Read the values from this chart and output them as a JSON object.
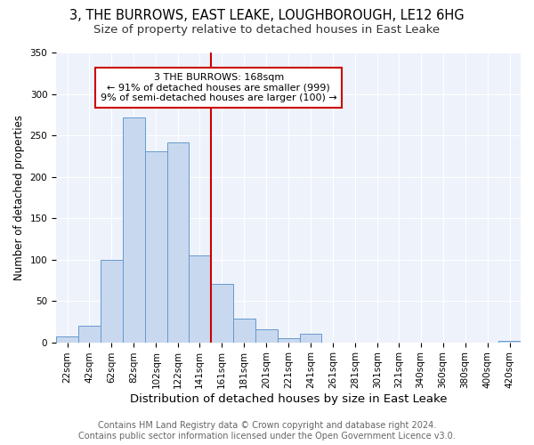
{
  "title": "3, THE BURROWS, EAST LEAKE, LOUGHBOROUGH, LE12 6HG",
  "subtitle": "Size of property relative to detached houses in East Leake",
  "xlabel": "Distribution of detached houses by size in East Leake",
  "ylabel": "Number of detached properties",
  "bin_labels": [
    "22sqm",
    "42sqm",
    "62sqm",
    "82sqm",
    "102sqm",
    "122sqm",
    "141sqm",
    "161sqm",
    "181sqm",
    "201sqm",
    "221sqm",
    "241sqm",
    "261sqm",
    "281sqm",
    "301sqm",
    "321sqm",
    "340sqm",
    "360sqm",
    "380sqm",
    "400sqm",
    "420sqm"
  ],
  "bar_heights": [
    7,
    20,
    100,
    271,
    231,
    241,
    105,
    70,
    29,
    16,
    5,
    10,
    0,
    0,
    0,
    0,
    0,
    0,
    0,
    0,
    2
  ],
  "bar_color": "#c8d9ef",
  "bar_edge_color": "#6699cc",
  "vline_x": 7,
  "vline_color": "#cc0000",
  "annotation_title": "3 THE BURROWS: 168sqm",
  "annotation_line1": "← 91% of detached houses are smaller (999)",
  "annotation_line2": "9% of semi-detached houses are larger (100) →",
  "annotation_box_color": "#ffffff",
  "annotation_box_edge": "#cc0000",
  "ylim": [
    0,
    350
  ],
  "yticks": [
    0,
    50,
    100,
    150,
    200,
    250,
    300,
    350
  ],
  "background_color": "#eef2fb",
  "footer1": "Contains HM Land Registry data © Crown copyright and database right 2024.",
  "footer2": "Contains public sector information licensed under the Open Government Licence v3.0.",
  "title_fontsize": 10.5,
  "subtitle_fontsize": 9.5,
  "xlabel_fontsize": 9.5,
  "ylabel_fontsize": 8.5,
  "tick_fontsize": 7.5,
  "footer_fontsize": 7,
  "bin_edges": [
    22,
    42,
    62,
    82,
    102,
    122,
    141,
    161,
    181,
    201,
    221,
    241,
    261,
    281,
    301,
    321,
    340,
    360,
    380,
    400,
    420,
    440
  ]
}
